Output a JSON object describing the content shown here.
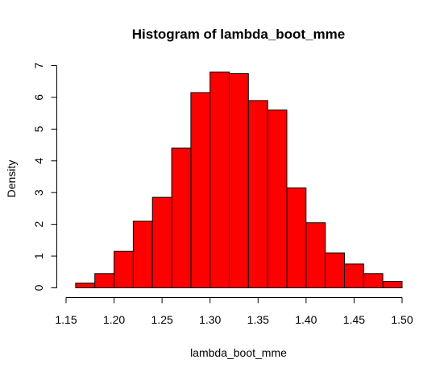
{
  "chart_data": {
    "type": "bar",
    "title": "Histogram of lambda_boot_mme",
    "xlabel": "lambda_boot_mme",
    "ylabel": "Density",
    "bin_edges": [
      1.16,
      1.18,
      1.2,
      1.22,
      1.24,
      1.26,
      1.28,
      1.3,
      1.32,
      1.34,
      1.36,
      1.38,
      1.4,
      1.42,
      1.44,
      1.46,
      1.48,
      1.5
    ],
    "values": [
      0.15,
      0.45,
      1.15,
      2.1,
      2.85,
      4.4,
      6.15,
      6.8,
      6.75,
      5.9,
      5.6,
      3.15,
      2.05,
      1.1,
      0.75,
      0.45,
      0.2
    ],
    "xlim": [
      1.15,
      1.5
    ],
    "ylim": [
      0,
      7
    ],
    "x_ticks": [
      "1.15",
      "1.20",
      "1.25",
      "1.30",
      "1.35",
      "1.40",
      "1.45",
      "1.50"
    ],
    "y_ticks": [
      "0",
      "1",
      "2",
      "3",
      "4",
      "5",
      "6",
      "7"
    ],
    "grid": false,
    "bar_color": "#ff0000",
    "edge_color": "#000000"
  }
}
